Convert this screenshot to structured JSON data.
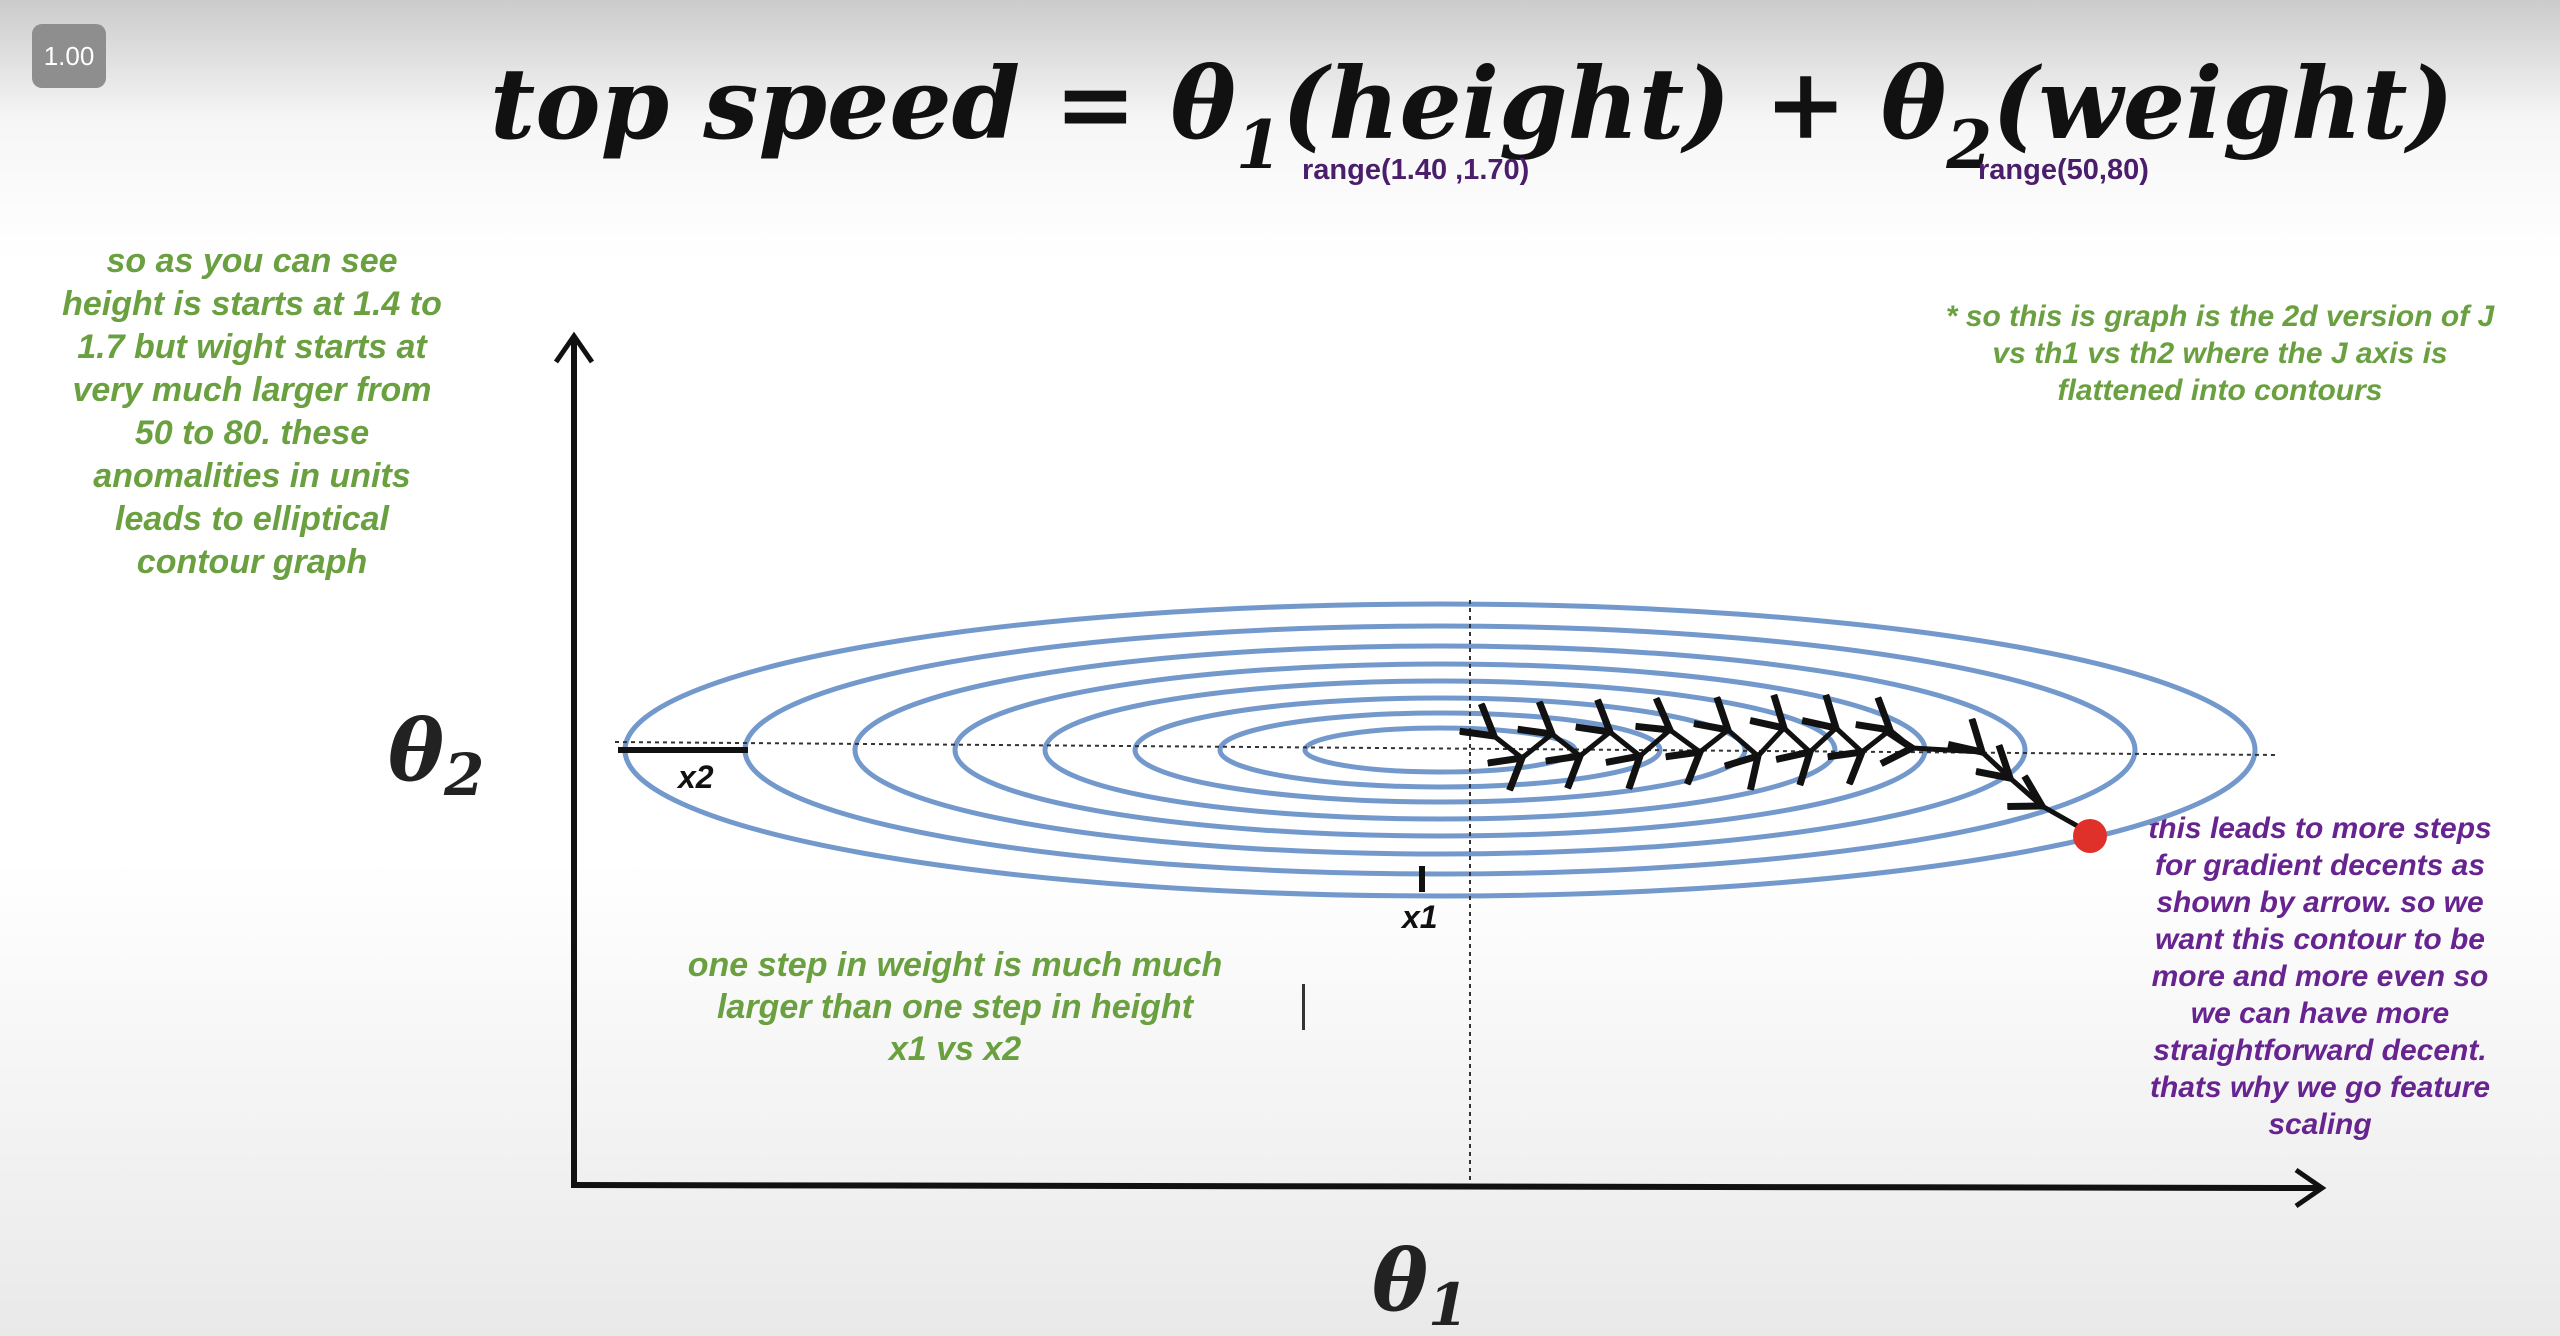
{
  "zoom_badge": "1.00",
  "formula": {
    "lhs": "top speed = ",
    "theta": "θ",
    "sub1": "1",
    "term1": "(height) + ",
    "sub2": "2",
    "term2": "(weight)"
  },
  "range_height": "range(1.40 ,1.70)",
  "range_weight": "range(50,80)",
  "note_left": "so as you can see height is starts at 1.4 to 1.7 but wight starts at very much larger from 50 to 80. these anomalities in units leads to elliptical contour graph",
  "note_top_right": "* so this is graph is the 2d version of J vs th1 vs th2 where the J axis is flattened into contours",
  "note_bottom_lines": [
    "one step in weight is much much",
    "larger than one step in height",
    "x1 vs x2"
  ],
  "note_right": "this leads to more steps for gradient decents as shown by arrow. so we want this contour to be more and more even so we can have more straightforward decent. thats why we go feature scaling",
  "axis": {
    "y_label": "θ",
    "y_sub": "2",
    "x_label": "θ",
    "x_sub": "1"
  },
  "markers": {
    "x1": "x1",
    "x2": "x2"
  },
  "colors": {
    "contour": "#7399cc",
    "start_point": "#e0302a",
    "green_text": "#6aa040",
    "purple_text": "#67238f",
    "range_text": "#4a1e6b"
  }
}
